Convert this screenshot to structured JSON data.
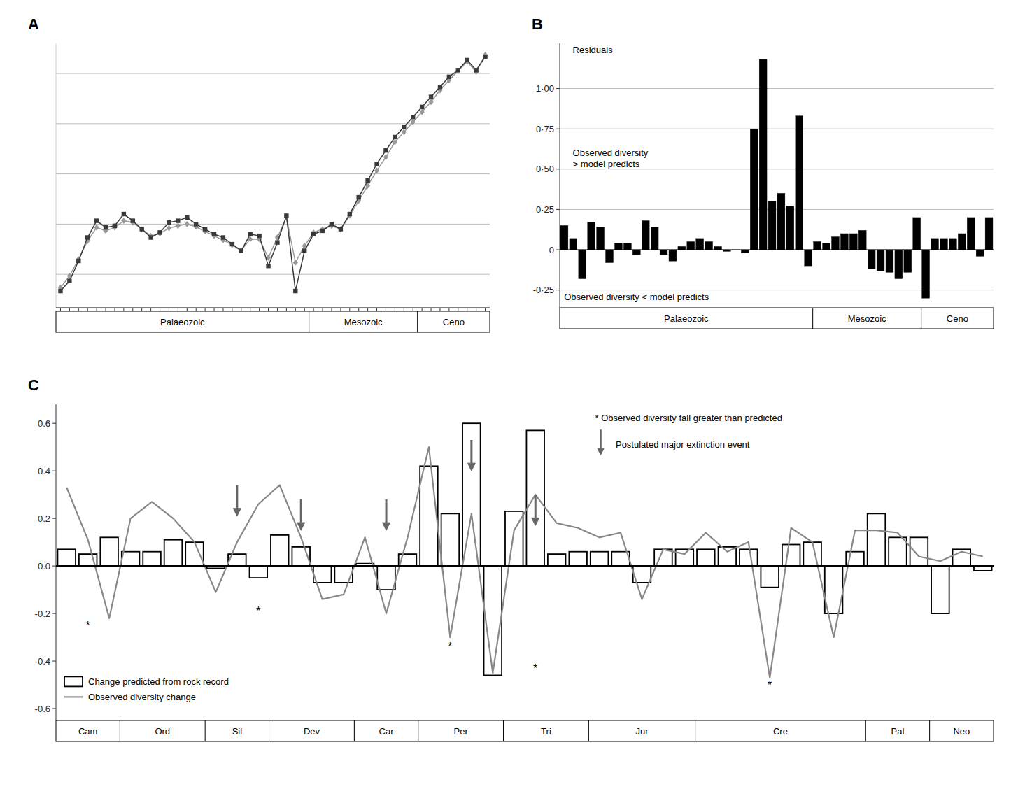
{
  "chart_data": [
    {
      "type": "line",
      "title": "A",
      "categories": [
        null,
        null,
        null,
        null,
        null,
        null,
        null,
        null,
        null,
        null,
        null,
        null,
        null,
        null,
        null,
        null,
        null,
        null,
        null,
        null,
        null,
        null,
        null,
        null,
        null,
        null,
        null,
        null,
        null,
        null,
        null,
        null,
        null,
        null,
        null,
        null,
        null,
        null,
        null,
        null,
        null,
        null,
        null,
        null,
        null,
        null,
        null,
        null
      ],
      "series": [
        {
          "color": "#999999",
          "marker": "diamond",
          "values": [
            110,
            145,
            195,
            250,
            290,
            280,
            290,
            310,
            305,
            285,
            265,
            272,
            288,
            295,
            300,
            292,
            278,
            265,
            252,
            238,
            222,
            255,
            255,
            200,
            260,
            320,
            185,
            235,
            275,
            285,
            295,
            285,
            325,
            370,
            415,
            460,
            500,
            545,
            575,
            605,
            635,
            665,
            700,
            730,
            758,
            785,
            755,
            805
          ]
        },
        {
          "color": "#3a3a3a",
          "marker": "square",
          "values": [
            100,
            130,
            190,
            260,
            310,
            290,
            295,
            330,
            310,
            285,
            260,
            275,
            305,
            310,
            320,
            300,
            285,
            270,
            260,
            240,
            220,
            270,
            265,
            175,
            245,
            325,
            100,
            220,
            270,
            280,
            300,
            285,
            330,
            380,
            430,
            480,
            520,
            560,
            590,
            620,
            650,
            680,
            710,
            740,
            760,
            790,
            760,
            800
          ]
        }
      ],
      "ylim": [
        50,
        840
      ],
      "yticks": [
        150,
        300,
        450,
        600,
        750
      ],
      "grid": true,
      "tick_labels": false,
      "eras": [
        {
          "name": "Palaeozoic",
          "start": 0,
          "end": 28
        },
        {
          "name": "Mesozoic",
          "start": 28,
          "end": 40
        },
        {
          "name": "Ceno",
          "start": 40,
          "end": 48
        }
      ]
    },
    {
      "type": "bar",
      "title": "B",
      "categories": [
        null,
        null,
        null,
        null,
        null,
        null,
        null,
        null,
        null,
        null,
        null,
        null,
        null,
        null,
        null,
        null,
        null,
        null,
        null,
        null,
        null,
        null,
        null,
        null,
        null,
        null,
        null,
        null,
        null,
        null,
        null,
        null,
        null,
        null,
        null,
        null,
        null,
        null,
        null,
        null,
        null,
        null,
        null,
        null,
        null,
        null,
        null,
        null
      ],
      "values": [
        0.15,
        0.07,
        -0.18,
        0.17,
        0.14,
        -0.08,
        0.04,
        0.04,
        -0.03,
        0.18,
        0.14,
        -0.03,
        -0.07,
        0.02,
        0.05,
        0.07,
        0.05,
        0.02,
        -0.01,
        0.0,
        -0.02,
        0.75,
        1.18,
        0.3,
        0.35,
        0.27,
        0.83,
        -0.1,
        0.05,
        0.04,
        0.08,
        0.1,
        0.1,
        0.12,
        -0.12,
        -0.13,
        -0.14,
        -0.18,
        -0.14,
        0.2,
        -0.3,
        0.07,
        0.07,
        0.07,
        0.1,
        0.2,
        -0.04,
        0.2
      ],
      "color": "#000000",
      "ylim": [
        -0.36,
        1.28
      ],
      "yticks": [
        {
          "value": -0.25,
          "label": "-0·25"
        },
        0,
        {
          "value": 0.25,
          "label": "0·25"
        },
        {
          "value": 0.5,
          "label": "0·50"
        },
        {
          "value": 0.75,
          "label": "0·75"
        },
        {
          "value": 1.0,
          "label": "1·00"
        }
      ],
      "grid": true,
      "tick_labels": "y",
      "annotations": [
        "Residuals",
        "Observed diversity\n> model predicts",
        "Observed diversity < model predicts"
      ],
      "eras": [
        {
          "name": "Palaeozoic",
          "start": 0,
          "end": 28
        },
        {
          "name": "Mesozoic",
          "start": 28,
          "end": 40
        },
        {
          "name": "Ceno",
          "start": 40,
          "end": 48
        }
      ]
    },
    {
      "type": "bar",
      "title": "C",
      "categories": [
        null,
        null,
        null,
        null,
        null,
        null,
        null,
        null,
        null,
        null,
        null,
        null,
        null,
        null,
        null,
        null,
        null,
        null,
        null,
        null,
        null,
        null,
        null,
        null,
        null,
        null,
        null,
        null,
        null,
        null,
        null,
        null,
        null,
        null,
        null,
        null,
        null,
        null,
        null,
        null,
        null,
        null,
        null,
        null
      ],
      "series": [
        {
          "name": "Change predicted from rock record",
          "type": "bar",
          "color": "#ffffff",
          "values": [
            0.07,
            0.05,
            0.12,
            0.06,
            0.06,
            0.11,
            0.1,
            -0.01,
            0.05,
            -0.05,
            0.13,
            0.08,
            -0.07,
            -0.07,
            0.01,
            -0.1,
            0.05,
            0.42,
            0.22,
            0.6,
            -0.46,
            0.23,
            0.57,
            0.05,
            0.06,
            0.06,
            0.06,
            -0.07,
            0.07,
            0.07,
            0.07,
            0.08,
            0.07,
            -0.09,
            0.09,
            0.1,
            -0.2,
            0.06,
            0.22,
            0.12,
            0.12,
            -0.2,
            0.07,
            -0.02
          ]
        },
        {
          "name": "Observed diversity change",
          "type": "line",
          "color": "#888888",
          "values": [
            0.33,
            0.11,
            -0.22,
            0.2,
            0.27,
            0.2,
            0.1,
            -0.11,
            0.1,
            0.26,
            0.34,
            0.12,
            -0.14,
            -0.12,
            0.12,
            -0.2,
            0.12,
            0.5,
            -0.3,
            0.22,
            -0.45,
            0.15,
            0.3,
            0.18,
            0.16,
            0.12,
            0.14,
            -0.14,
            0.07,
            0.05,
            0.14,
            0.06,
            0.1,
            -0.47,
            0.16,
            0.1,
            -0.3,
            0.15,
            0.15,
            0.14,
            0.04,
            0.02,
            0.06,
            0.04
          ]
        }
      ],
      "ylim": [
        -0.65,
        0.68
      ],
      "yticks": [
        -0.6,
        -0.4,
        -0.2,
        {
          "value": 0.0,
          "label": "0.0"
        },
        0.2,
        0.4,
        0.6
      ],
      "grid": false,
      "tick_labels": "y",
      "legend": "lower left",
      "annotations": [
        "* Observed diversity fall greater than predicted",
        "Postulated major extinction event"
      ],
      "arrow_color": "#666666",
      "arrows": [
        {
          "x": 8,
          "y_start": 0.34,
          "y_end": 0.21
        },
        {
          "x": 11,
          "y_start": 0.28,
          "y_end": 0.15
        },
        {
          "x": 15,
          "y_start": 0.28,
          "y_end": 0.15
        },
        {
          "x": 19,
          "y_start": 0.53,
          "y_end": 0.4
        },
        {
          "x": 22,
          "y_start": 0.3,
          "y_end": 0.17
        }
      ],
      "asterisks": [
        {
          "x": 1,
          "y": -0.24,
          "label": "*"
        },
        {
          "x": 9,
          "y": -0.18,
          "label": "*"
        },
        {
          "x": 18,
          "y": -0.33,
          "label": "*"
        },
        {
          "x": 22,
          "y": -0.42,
          "label": "*"
        },
        {
          "x": 33,
          "y": -0.49,
          "label": "*"
        }
      ],
      "eras": [
        {
          "name": "Cam",
          "start": 0,
          "end": 3
        },
        {
          "name": "Ord",
          "start": 3,
          "end": 7
        },
        {
          "name": "Sil",
          "start": 7,
          "end": 10
        },
        {
          "name": "Dev",
          "start": 10,
          "end": 14
        },
        {
          "name": "Car",
          "start": 14,
          "end": 17
        },
        {
          "name": "Per",
          "start": 17,
          "end": 21
        },
        {
          "name": "Tri",
          "start": 21,
          "end": 25
        },
        {
          "name": "Jur",
          "start": 25,
          "end": 30
        },
        {
          "name": "Cre",
          "start": 30,
          "end": 38
        },
        {
          "name": "Pal",
          "start": 38,
          "end": 41
        },
        {
          "name": "Neo",
          "start": 41,
          "end": 44
        }
      ]
    }
  ]
}
